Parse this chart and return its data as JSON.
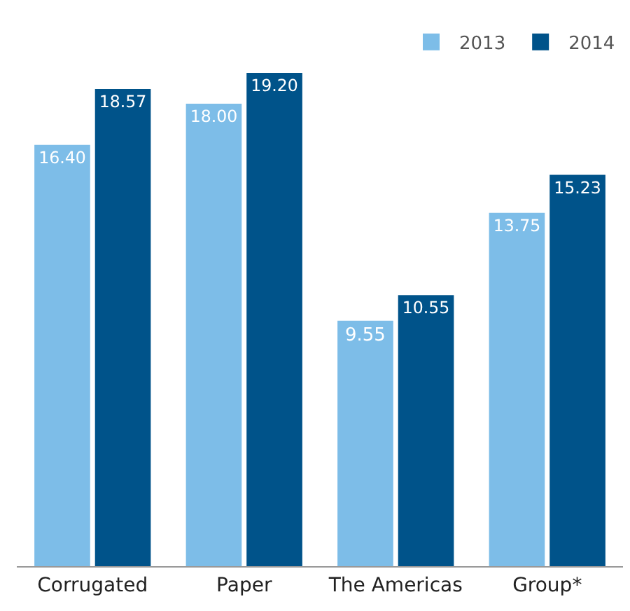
{
  "chart_data": {
    "type": "bar",
    "categories": [
      "Corrugated",
      "Paper",
      "The Americas",
      "Group*"
    ],
    "series": [
      {
        "name": "2013",
        "color": "#7dbde8",
        "values": [
          16.4,
          18.0,
          9.55,
          13.75
        ],
        "value_labels": [
          "16.40",
          "18.00",
          "9.55",
          "13.75"
        ]
      },
      {
        "name": "2014",
        "color": "#00538a",
        "values": [
          18.57,
          19.2,
          10.55,
          15.23
        ],
        "value_labels": [
          "18.57",
          "19.20",
          "10.55",
          "15.23"
        ]
      }
    ],
    "legend": "top right"
  }
}
